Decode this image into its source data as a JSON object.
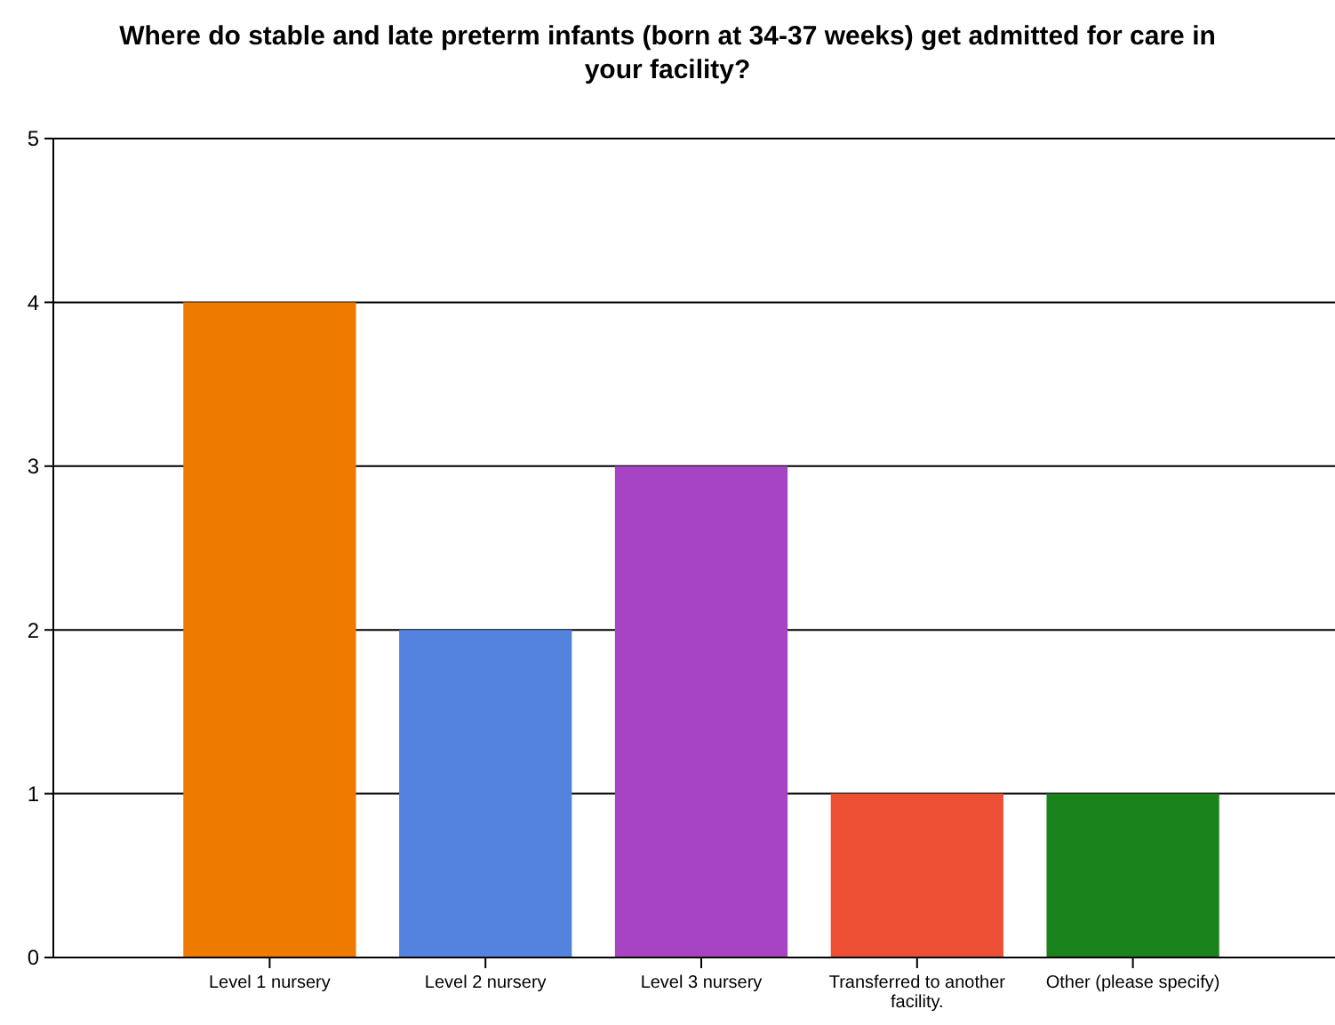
{
  "chart_data": {
    "type": "bar",
    "title": "Where do stable and late preterm infants (born at  34-37 weeks) get admitted  for care  in your facility?",
    "categories": [
      "Level 1 nursery",
      "Level 2 nursery",
      "Level 3 nursery",
      "Transferred to another facility.",
      "Other (please specify)"
    ],
    "values": [
      4,
      2,
      3,
      1,
      1
    ],
    "colors": [
      "#ee7a00",
      "#5383de",
      "#a744c4",
      "#ec4f34",
      "#1a821a"
    ],
    "ylim": [
      0,
      5
    ],
    "yticks": [
      0,
      1,
      2,
      3,
      4,
      5
    ],
    "grid": "y"
  }
}
